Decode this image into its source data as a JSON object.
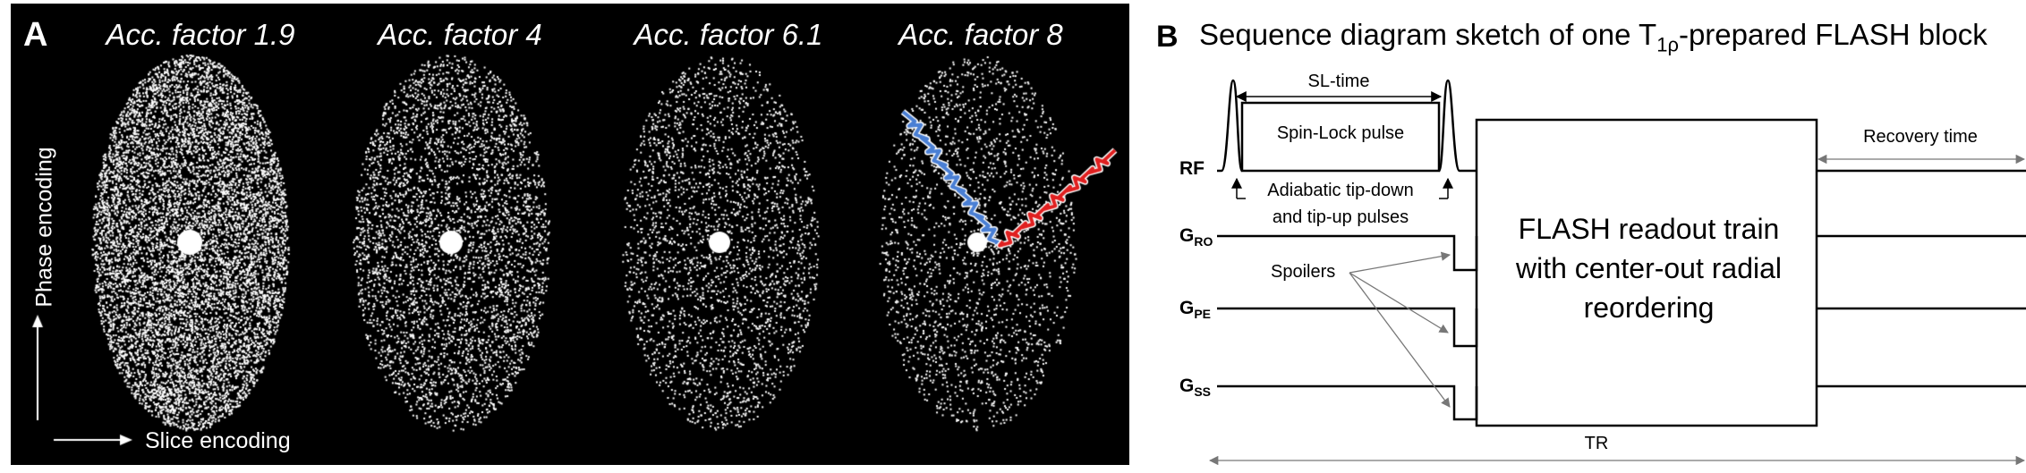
{
  "panel_a": {
    "label": "A",
    "subplots": [
      {
        "title": "Acc. factor 1.9",
        "acceleration_factor": 1.9
      },
      {
        "title": "Acc. factor 4",
        "acceleration_factor": 4
      },
      {
        "title": "Acc. factor 6.1",
        "acceleration_factor": 6.1
      },
      {
        "title": "Acc. factor 8",
        "acceleration_factor": 8
      }
    ],
    "y_axis_label": "Phase encoding",
    "x_axis_label": "Slice encoding",
    "colors": {
      "background": "#000000",
      "samples": "#ffffff",
      "trajectory_1": "#4a7fd4",
      "trajectory_2": "#e02020"
    }
  },
  "panel_b": {
    "label": "B",
    "title_pre": "Sequence diagram sketch of one T",
    "title_sub": "1ρ",
    "title_post": "-prepared FLASH block",
    "channels": [
      {
        "key": "rf",
        "label": "RF",
        "sub": ""
      },
      {
        "key": "gro",
        "label": "G",
        "sub": "RO"
      },
      {
        "key": "gpe",
        "label": "G",
        "sub": "PE"
      },
      {
        "key": "gss",
        "label": "G",
        "sub": "SS"
      }
    ],
    "sl_time": "SL-time",
    "spin_lock": "Spin-Lock pulse",
    "adiabatic_1": "Adiabatic tip-down",
    "adiabatic_2": "and tip-up pulses",
    "spoilers": "Spoilers",
    "flash_line1": "FLASH readout train",
    "flash_line2": "with center-out radial",
    "flash_line3": "reordering",
    "recovery": "Recovery time",
    "tr": "TR"
  }
}
